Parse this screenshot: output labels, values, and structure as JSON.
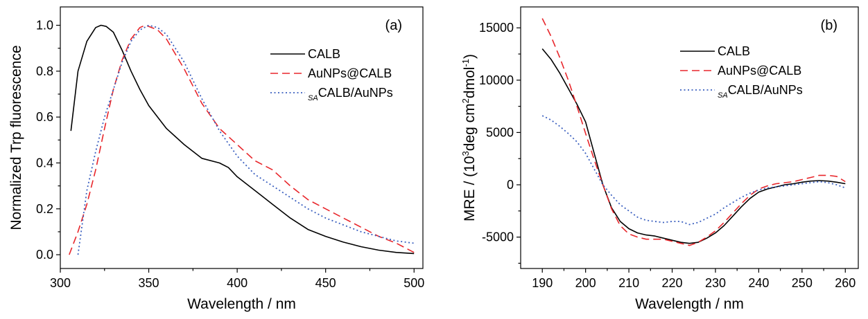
{
  "chart_data": [
    {
      "type": "line",
      "panel_label": "(a)",
      "xlabel": "Wavelength / nm",
      "ylabel": "Normalized Trp fluorescence",
      "xlim": [
        300,
        505
      ],
      "ylim": [
        -0.06,
        1.08
      ],
      "xticks": [
        300,
        350,
        400,
        450,
        500
      ],
      "yticks": [
        0.0,
        0.2,
        0.4,
        0.6,
        0.8,
        1.0
      ],
      "ytick_labels": [
        "0.0",
        "0.2",
        "0.4",
        "0.6",
        "0.8",
        "1.0"
      ],
      "legend_position": "top-right",
      "series": [
        {
          "name": "CALB",
          "color": "#000000",
          "style": "solid",
          "x": [
            306,
            310,
            315,
            320,
            323,
            326,
            330,
            335,
            340,
            345,
            350,
            360,
            370,
            380,
            390,
            395,
            400,
            410,
            420,
            430,
            440,
            450,
            460,
            470,
            480,
            490,
            500
          ],
          "y": [
            0.54,
            0.8,
            0.93,
            0.99,
            1.0,
            0.995,
            0.97,
            0.89,
            0.8,
            0.72,
            0.65,
            0.55,
            0.48,
            0.42,
            0.4,
            0.38,
            0.34,
            0.28,
            0.22,
            0.16,
            0.11,
            0.08,
            0.055,
            0.035,
            0.02,
            0.01,
            0.005
          ]
        },
        {
          "name": "AuNPs@CALB",
          "name_prefix": "",
          "color": "#e8262b",
          "style": "dashed",
          "x": [
            305,
            310,
            315,
            320,
            325,
            330,
            335,
            340,
            345,
            348,
            350,
            355,
            360,
            370,
            380,
            390,
            400,
            410,
            420,
            430,
            440,
            450,
            460,
            470,
            480,
            490,
            500
          ],
          "y": [
            0.0,
            0.1,
            0.22,
            0.37,
            0.55,
            0.72,
            0.85,
            0.94,
            0.99,
            1.0,
            0.995,
            0.98,
            0.94,
            0.81,
            0.66,
            0.55,
            0.48,
            0.41,
            0.37,
            0.3,
            0.24,
            0.2,
            0.16,
            0.12,
            0.08,
            0.05,
            0.01
          ]
        },
        {
          "name": "CALB/AuNPs",
          "name_prefix": "SA",
          "color": "#3a5fbf",
          "style": "dotted",
          "x": [
            310,
            315,
            320,
            325,
            330,
            335,
            340,
            345,
            350,
            355,
            360,
            370,
            380,
            390,
            400,
            410,
            420,
            430,
            440,
            450,
            460,
            470,
            480,
            490,
            500
          ],
          "y": [
            0.0,
            0.28,
            0.45,
            0.6,
            0.72,
            0.84,
            0.93,
            0.98,
            1.0,
            0.99,
            0.96,
            0.84,
            0.68,
            0.54,
            0.43,
            0.35,
            0.3,
            0.25,
            0.2,
            0.16,
            0.13,
            0.1,
            0.08,
            0.06,
            0.05
          ]
        }
      ]
    },
    {
      "type": "line",
      "panel_label": "(b)",
      "xlabel": "Wavelength / nm",
      "ylabel_prefix": "MRE / (10",
      "ylabel_sup1": "3",
      "ylabel_mid": "deg cm",
      "ylabel_sup2": "2",
      "ylabel_mid2": "dmol",
      "ylabel_sup3": "-1",
      "ylabel_suffix": ")",
      "xlim": [
        185,
        263
      ],
      "ylim": [
        -8000,
        17000
      ],
      "xticks": [
        190,
        200,
        210,
        220,
        230,
        240,
        250,
        260
      ],
      "yticks": [
        -5000,
        0,
        5000,
        10000,
        15000
      ],
      "ytick_labels": [
        "-5000",
        "0",
        "5000",
        "10000",
        "15000"
      ],
      "legend_position": "top-right",
      "series": [
        {
          "name": "CALB",
          "color": "#000000",
          "style": "solid",
          "x": [
            190,
            192,
            194,
            196,
            198,
            200,
            202,
            204,
            206,
            208,
            210,
            212,
            214,
            216,
            218,
            220,
            222,
            224,
            226,
            228,
            230,
            232,
            234,
            236,
            238,
            240,
            242,
            244,
            246,
            248,
            250,
            252,
            254,
            256,
            258,
            260
          ],
          "y": [
            13000,
            12000,
            10700,
            9200,
            7700,
            6000,
            3000,
            0,
            -2200,
            -3500,
            -4200,
            -4600,
            -4800,
            -4900,
            -5100,
            -5300,
            -5500,
            -5600,
            -5500,
            -5100,
            -4600,
            -3900,
            -3000,
            -2100,
            -1300,
            -700,
            -400,
            -200,
            0,
            100,
            250,
            350,
            400,
            350,
            250,
            100
          ]
        },
        {
          "name": "AuNPs@CALB",
          "name_prefix": "",
          "color": "#e8262b",
          "style": "dashed",
          "x": [
            190,
            192,
            194,
            196,
            198,
            200,
            202,
            204,
            206,
            208,
            210,
            212,
            214,
            216,
            218,
            220,
            222,
            224,
            226,
            228,
            230,
            232,
            234,
            236,
            238,
            240,
            242,
            244,
            246,
            248,
            250,
            252,
            254,
            256,
            258,
            260
          ],
          "y": [
            15900,
            14200,
            12200,
            10000,
            7500,
            4900,
            2400,
            0,
            -2300,
            -3900,
            -4700,
            -5000,
            -5200,
            -5200,
            -5200,
            -5400,
            -5600,
            -5800,
            -5500,
            -5000,
            -4400,
            -3600,
            -2700,
            -1800,
            -1000,
            -400,
            -100,
            100,
            200,
            300,
            500,
            700,
            900,
            900,
            800,
            300
          ]
        },
        {
          "name": "CALB/AuNPs",
          "name_prefix": "SA",
          "color": "#3a5fbf",
          "style": "dotted",
          "x": [
            190,
            192,
            194,
            196,
            198,
            200,
            202,
            204,
            206,
            208,
            210,
            212,
            214,
            216,
            218,
            220,
            222,
            224,
            226,
            228,
            230,
            232,
            234,
            236,
            238,
            240,
            242,
            244,
            246,
            248,
            250,
            252,
            254,
            256,
            258,
            260
          ],
          "y": [
            6600,
            6200,
            5600,
            4900,
            4100,
            3000,
            1500,
            0,
            -1000,
            -1900,
            -2500,
            -3100,
            -3400,
            -3500,
            -3600,
            -3500,
            -3500,
            -3800,
            -3600,
            -3200,
            -2800,
            -2200,
            -1700,
            -1200,
            -800,
            -500,
            -300,
            -200,
            -100,
            0,
            100,
            200,
            300,
            200,
            0,
            -300
          ]
        }
      ]
    }
  ]
}
